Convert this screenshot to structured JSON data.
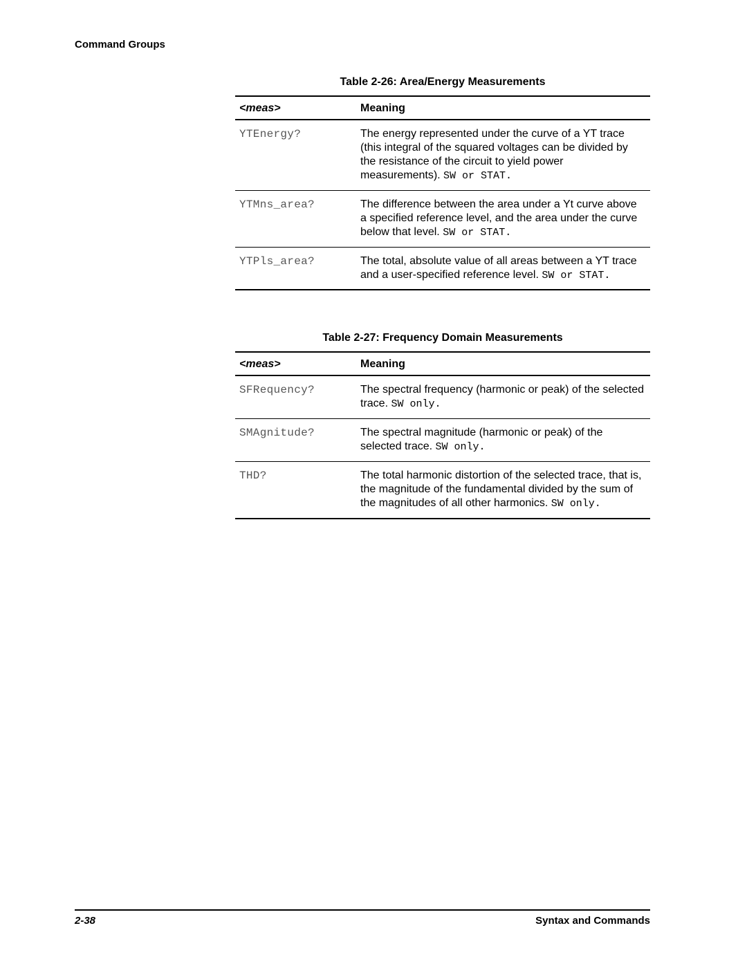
{
  "header": {
    "section": "Command Groups"
  },
  "tables": [
    {
      "caption": "Table 2-26:  Area/Energy Measurements",
      "columns": {
        "meas": "<meas>",
        "meaning": "Meaning"
      },
      "rows": [
        {
          "cmd": "YTEnergy?",
          "desc": "The energy represented under the curve of a YT trace (this integral of the squared voltages can be divided by the resistance of the circuit to yield power measurements). ",
          "suffix": "SW or STAT."
        },
        {
          "cmd": "YTMns_area?",
          "desc": "The difference between the area under a Yt curve above a specified reference level, and the area under the curve below that level. ",
          "suffix": "SW or STAT."
        },
        {
          "cmd": "YTPls_area?",
          "desc": "The total, absolute value of all areas between a YT trace and a user-specified reference level. ",
          "suffix": "SW or STAT."
        }
      ]
    },
    {
      "caption": "Table 2-27:  Frequency Domain Measurements",
      "columns": {
        "meas": "<meas>",
        "meaning": "Meaning"
      },
      "rows": [
        {
          "cmd": "SFRequency?",
          "desc": "The spectral frequency (harmonic or peak) of the selected trace. ",
          "suffix": "SW only."
        },
        {
          "cmd": "SMAgnitude?",
          "desc": "The spectral magnitude (harmonic or peak) of the selected trace. ",
          "suffix": "SW only."
        },
        {
          "cmd": "THD?",
          "desc": "The total harmonic distortion of the selected trace, that is, the magnitude of the fundamental divided by the sum of the magnitudes of all other harmonics. ",
          "suffix": "SW only."
        }
      ]
    }
  ],
  "footer": {
    "page": "2-38",
    "book": "Syntax and Commands"
  }
}
